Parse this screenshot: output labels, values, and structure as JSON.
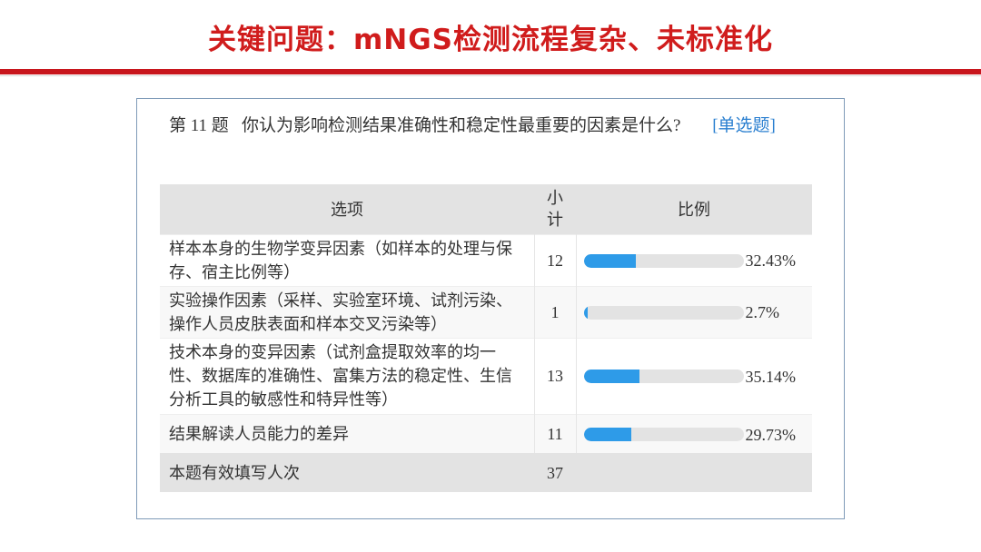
{
  "title": "关键问题：mNGS检测流程复杂、未标准化",
  "question": {
    "number": "第 11 题",
    "text": "你认为影响检测结果准确性和稳定性最重要的因素是什么?",
    "type": "[单选题]"
  },
  "table": {
    "headers": [
      "选项",
      "小计",
      "比例"
    ],
    "rows": [
      {
        "option": "样本本身的生物学变异因素（如样本的处理与保存、宿主比例等）",
        "count": "12",
        "percent": "32.43%",
        "value": 32.43
      },
      {
        "option": "实验操作因素（采样、实验室环境、试剂污染、操作人员皮肤表面和样本交叉污染等）",
        "count": "1",
        "percent": "2.7%",
        "value": 2.7
      },
      {
        "option": "技术本身的变异因素（试剂盒提取效率的均一性、数据库的准确性、富集方法的稳定性、生信分析工具的敏感性和特异性等）",
        "count": "13",
        "percent": "35.14%",
        "value": 35.14
      },
      {
        "option": "结果解读人员能力的差异",
        "count": "11",
        "percent": "29.73%",
        "value": 29.73
      }
    ],
    "footer": {
      "label": "本题有效填写人次",
      "count": "37"
    }
  },
  "colors": {
    "title": "#d01c1c",
    "bar": "#2e9be8",
    "track": "#e3e3e3",
    "link": "#2a7fd0"
  }
}
